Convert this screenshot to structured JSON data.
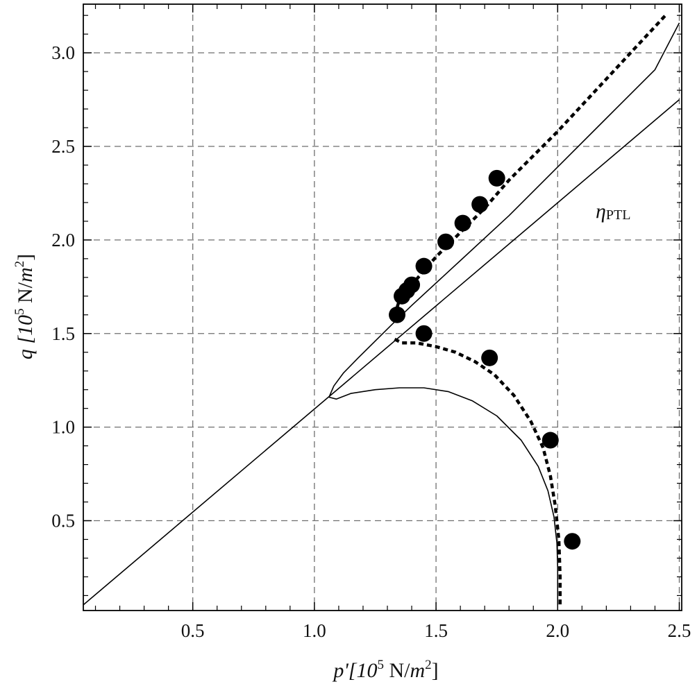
{
  "chart_data": {
    "type": "line",
    "x_ticks": [
      "0.5",
      "1.0",
      "1.5",
      "2.0",
      "2.5"
    ],
    "y_ticks": [
      "0.5",
      "1.0",
      "1.5",
      "2.0",
      "2.5",
      "3.0"
    ],
    "xlabel": {
      "main": "p'[10",
      "exp": "5",
      "unit": " N/",
      "unit_italic": "m",
      "unit_exp": "2",
      "close": "]"
    },
    "ylabel": {
      "main": "q [10",
      "exp": "5",
      "unit": " N/",
      "unit_italic": "m",
      "unit_exp": "2",
      "close": "]"
    },
    "annotation": {
      "symbol": "η",
      "subscript": "PTL"
    },
    "xlim": [
      0.05,
      2.51
    ],
    "ylim": [
      0.02,
      3.26
    ],
    "grid": true,
    "series": [
      {
        "style": "solid",
        "x": [
          0.05,
          2.5
        ],
        "y": [
          0.05,
          2.75
        ]
      },
      {
        "style": "solid",
        "x": [
          1.06,
          1.08,
          1.12,
          1.18,
          1.25,
          1.32,
          1.4,
          1.6,
          1.8,
          2.0,
          2.2,
          2.4,
          2.5
        ],
        "y": [
          1.16,
          1.22,
          1.29,
          1.37,
          1.46,
          1.55,
          1.65,
          1.89,
          2.13,
          2.39,
          2.65,
          2.91,
          3.16
        ]
      },
      {
        "style": "solid",
        "x": [
          1.06,
          1.09,
          1.15,
          1.25,
          1.35,
          1.45,
          1.55,
          1.65,
          1.75,
          1.85,
          1.92,
          1.96,
          1.985,
          1.997,
          2.0,
          2.0
        ],
        "y": [
          1.16,
          1.15,
          1.18,
          1.2,
          1.21,
          1.21,
          1.19,
          1.14,
          1.06,
          0.93,
          0.79,
          0.66,
          0.52,
          0.38,
          0.25,
          0.05
        ]
      },
      {
        "style": "dashed",
        "x": [
          1.33,
          1.35,
          1.4,
          1.5,
          1.6,
          1.7,
          1.8,
          1.9,
          2.0,
          2.1,
          2.2,
          2.3,
          2.4,
          2.45
        ],
        "y": [
          1.6,
          1.68,
          1.76,
          1.91,
          2.04,
          2.17,
          2.32,
          2.45,
          2.58,
          2.72,
          2.86,
          3.0,
          3.14,
          3.21
        ]
      },
      {
        "style": "dashed",
        "x": [
          1.33,
          1.36,
          1.42,
          1.5,
          1.58,
          1.66,
          1.74,
          1.82,
          1.89,
          1.94,
          1.97,
          1.99,
          2.005,
          2.01,
          2.01
        ],
        "y": [
          1.47,
          1.45,
          1.45,
          1.43,
          1.4,
          1.35,
          1.28,
          1.17,
          1.03,
          0.89,
          0.74,
          0.58,
          0.4,
          0.2,
          0.05
        ]
      },
      {
        "style": "points",
        "x": [
          1.34,
          1.36,
          1.38,
          1.4,
          1.45,
          1.54,
          1.61,
          1.68,
          1.75,
          1.45,
          1.72,
          1.97,
          2.06
        ],
        "y": [
          1.6,
          1.7,
          1.73,
          1.76,
          1.86,
          1.99,
          2.09,
          2.19,
          2.33,
          1.5,
          1.37,
          0.93,
          0.39
        ]
      }
    ]
  }
}
